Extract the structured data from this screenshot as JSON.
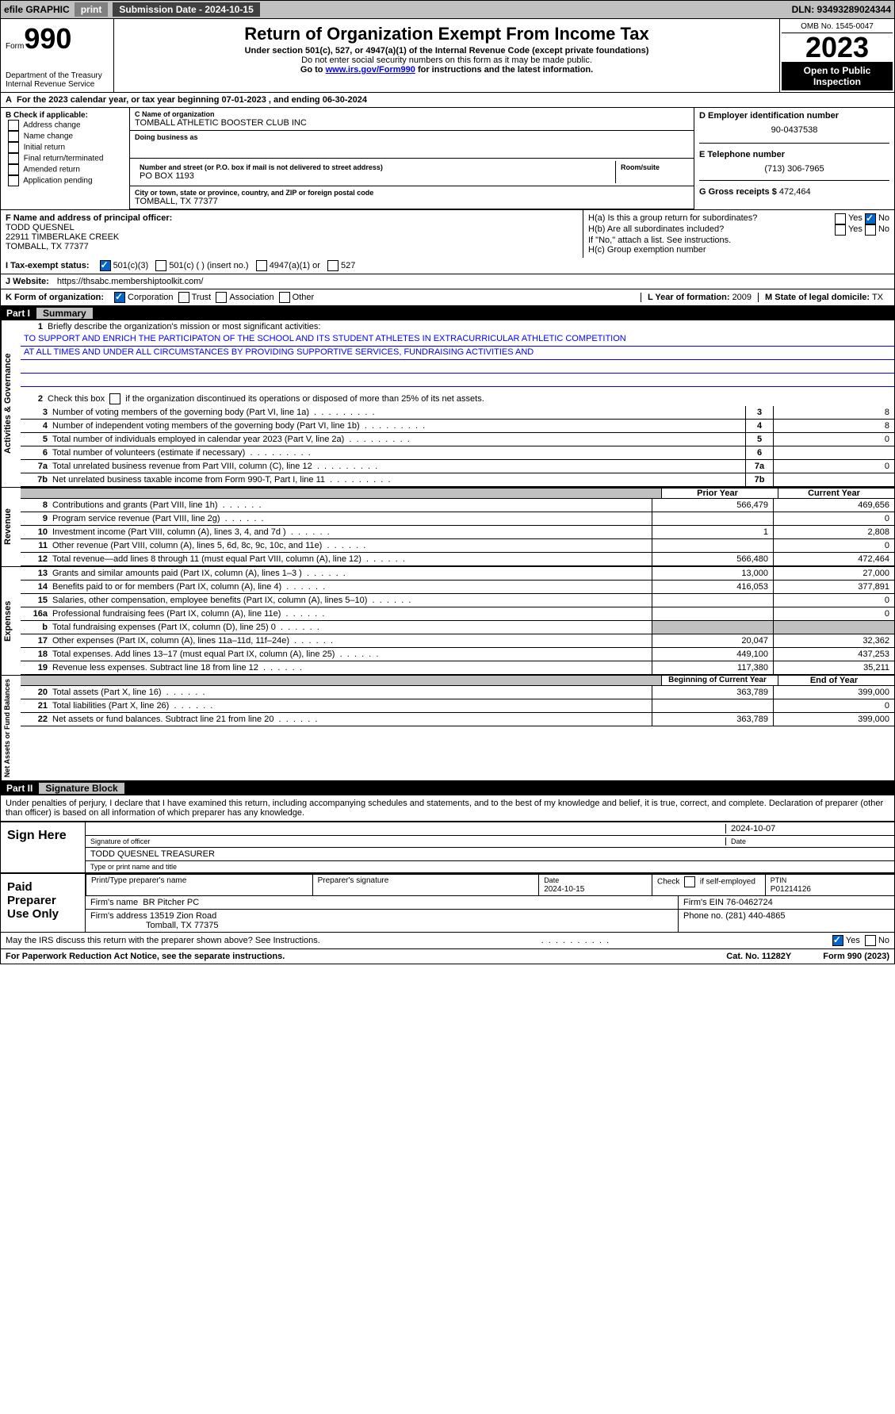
{
  "topbar": {
    "efile": "efile GRAPHIC",
    "print": "print",
    "sub_label": "Submission Date - 2024-10-15",
    "dln": "DLN: 93493289024344"
  },
  "header": {
    "form_word": "Form",
    "form_num": "990",
    "title": "Return of Organization Exempt From Income Tax",
    "sub1": "Under section 501(c), 527, or 4947(a)(1) of the Internal Revenue Code (except private foundations)",
    "sub2": "Do not enter social security numbers on this form as it may be made public.",
    "sub3_pre": "Go to ",
    "sub3_link": "www.irs.gov/Form990",
    "sub3_post": " for instructions and the latest information.",
    "omb": "OMB No. 1545-0047",
    "year": "2023",
    "otp": "Open to Public Inspection",
    "dept1": "Department of the Treasury",
    "dept2": "Internal Revenue Service"
  },
  "line_a": "For the 2023 calendar year, or tax year beginning 07-01-2023    , and ending 06-30-2024",
  "box_b": {
    "title": "B Check if applicable:",
    "opts": [
      "Address change",
      "Name change",
      "Initial return",
      "Final return/terminated",
      "Amended return",
      "Application pending"
    ]
  },
  "box_c": {
    "name_lbl": "C Name of organization",
    "name": "TOMBALL ATHLETIC BOOSTER CLUB INC",
    "dba_lbl": "Doing business as",
    "dba": "",
    "addr_lbl": "Number and street (or P.O. box if mail is not delivered to street address)",
    "room_lbl": "Room/suite",
    "addr": "PO BOX 1193",
    "city_lbl": "City or town, state or province, country, and ZIP or foreign postal code",
    "city": "TOMBALL, TX  77377"
  },
  "box_d": {
    "lbl": "D Employer identification number",
    "val": "90-0437538"
  },
  "box_e": {
    "lbl": "E Telephone number",
    "val": "(713) 306-7965"
  },
  "box_g": {
    "lbl": "G Gross receipts $",
    "val": "472,464"
  },
  "box_f": {
    "lbl": "F Name and address of principal officer:",
    "l1": "TODD QUESNEL",
    "l2": "22911 TIMBERLAKE CREEK",
    "l3": "TOMBALL, TX  77377"
  },
  "box_h": {
    "ha": "H(a)  Is this a group return for subordinates?",
    "hb": "H(b)  Are all subordinates included?",
    "hb2": "If \"No,\" attach a list. See instructions.",
    "hc": "H(c)  Group exemption number ",
    "yes": "Yes",
    "no": "No"
  },
  "row_i": {
    "lbl": "I    Tax-exempt status:",
    "o1": "501(c)(3)",
    "o2": "501(c) (   ) (insert no.)",
    "o3": "4947(a)(1) or",
    "o4": "527"
  },
  "row_j": {
    "lbl": "J   Website:  ",
    "val": "https://thsabc.membershiptoolkit.com/"
  },
  "row_k": {
    "lbl": "K Form of organization:",
    "o1": "Corporation",
    "o2": "Trust",
    "o3": "Association",
    "o4": "Other"
  },
  "row_l": {
    "lbl": "L Year of formation:",
    "val": "2009"
  },
  "row_m": {
    "lbl": "M State of legal domicile:",
    "val": "TX"
  },
  "parts": {
    "p1": "Part I",
    "p1t": "Summary",
    "p2": "Part II",
    "p2t": "Signature Block"
  },
  "summary": {
    "l1_lbl": "Briefly describe the organization's mission or most significant activities:",
    "mission1": "TO SUPPORT AND ENRICH THE PARTICIPATON OF THE SCHOOL AND ITS STUDENT ATHLETES IN EXTRACURRICULAR ATHLETIC COMPETITION",
    "mission2": "AT ALL TIMES AND UNDER ALL CIRCUMSTANCES BY PROVIDING SUPPORTIVE SERVICES, FUNDRAISING ACTIVITIES AND",
    "l2": "Check this box        if the organization discontinued its operations or disposed of more than 25% of its net assets.",
    "l3": {
      "t": "Number of voting members of the governing body (Part VI, line 1a)",
      "n": "3",
      "v": "8"
    },
    "l4": {
      "t": "Number of independent voting members of the governing body (Part VI, line 1b)",
      "n": "4",
      "v": "8"
    },
    "l5": {
      "t": "Total number of individuals employed in calendar year 2023 (Part V, line 2a)",
      "n": "5",
      "v": "0"
    },
    "l6": {
      "t": "Total number of volunteers (estimate if necessary)",
      "n": "6",
      "v": ""
    },
    "l7a": {
      "t": "Total unrelated business revenue from Part VIII, column (C), line 12",
      "n": "7a",
      "v": "0"
    },
    "l7b": {
      "t": "Net unrelated business taxable income from Form 990-T, Part I, line 11",
      "n": "7b",
      "v": ""
    },
    "hdr_prior": "Prior Year",
    "hdr_curr": "Current Year",
    "rev": [
      {
        "n": "8",
        "t": "Contributions and grants (Part VIII, line 1h)",
        "p": "566,479",
        "c": "469,656"
      },
      {
        "n": "9",
        "t": "Program service revenue (Part VIII, line 2g)",
        "p": "",
        "c": "0"
      },
      {
        "n": "10",
        "t": "Investment income (Part VIII, column (A), lines 3, 4, and 7d )",
        "p": "1",
        "c": "2,808"
      },
      {
        "n": "11",
        "t": "Other revenue (Part VIII, column (A), lines 5, 6d, 8c, 9c, 10c, and 11e)",
        "p": "",
        "c": "0"
      },
      {
        "n": "12",
        "t": "Total revenue—add lines 8 through 11 (must equal Part VIII, column (A), line 12)",
        "p": "566,480",
        "c": "472,464"
      }
    ],
    "exp": [
      {
        "n": "13",
        "t": "Grants and similar amounts paid (Part IX, column (A), lines 1–3 )",
        "p": "13,000",
        "c": "27,000"
      },
      {
        "n": "14",
        "t": "Benefits paid to or for members (Part IX, column (A), line 4)",
        "p": "416,053",
        "c": "377,891"
      },
      {
        "n": "15",
        "t": "Salaries, other compensation, employee benefits (Part IX, column (A), lines 5–10)",
        "p": "",
        "c": "0"
      },
      {
        "n": "16a",
        "t": "Professional fundraising fees (Part IX, column (A), line 11e)",
        "p": "",
        "c": "0"
      },
      {
        "n": "b",
        "t": "Total fundraising expenses (Part IX, column (D), line 25) 0",
        "p": "SHADE",
        "c": "SHADE"
      },
      {
        "n": "17",
        "t": "Other expenses (Part IX, column (A), lines 11a–11d, 11f–24e)",
        "p": "20,047",
        "c": "32,362"
      },
      {
        "n": "18",
        "t": "Total expenses. Add lines 13–17 (must equal Part IX, column (A), line 25)",
        "p": "449,100",
        "c": "437,253"
      },
      {
        "n": "19",
        "t": "Revenue less expenses. Subtract line 18 from line 12",
        "p": "117,380",
        "c": "35,211"
      }
    ],
    "hdr_begin": "Beginning of Current Year",
    "hdr_end": "End of Year",
    "net": [
      {
        "n": "20",
        "t": "Total assets (Part X, line 16)",
        "p": "363,789",
        "c": "399,000"
      },
      {
        "n": "21",
        "t": "Total liabilities (Part X, line 26)",
        "p": "",
        "c": "0"
      },
      {
        "n": "22",
        "t": "Net assets or fund balances. Subtract line 21 from line 20",
        "p": "363,789",
        "c": "399,000"
      }
    ],
    "vtabs": {
      "ag": "Activities & Governance",
      "rev": "Revenue",
      "exp": "Expenses",
      "net": "Net Assets or Fund Balances"
    }
  },
  "sigblock": {
    "decl": "Under penalties of perjury, I declare that I have examined this return, including accompanying schedules and statements, and to the best of my knowledge and belief, it is true, correct, and complete. Declaration of preparer (other than officer) is based on all information of which preparer has any knowledge.",
    "sign_here": "Sign Here",
    "sig_officer": "Signature of officer",
    "officer_name": "TODD QUESNEL  TREASURER",
    "type_name": "Type or print name and title",
    "date_lbl": "Date",
    "date_val": "2024-10-07",
    "paid": "Paid Preparer Use Only",
    "prep_name_lbl": "Print/Type preparer's name",
    "prep_sig_lbl": "Preparer's signature",
    "prep_date": "2024-10-15",
    "check_self": "Check        if self-employed",
    "ptin_lbl": "PTIN",
    "ptin": "P01214126",
    "firm_name_lbl": "Firm's name   ",
    "firm_name": "BR Pitcher PC",
    "firm_ein_lbl": "Firm's EIN  ",
    "firm_ein": "76-0462724",
    "firm_addr_lbl": "Firm's address ",
    "firm_addr1": "13519 Zion Road",
    "firm_addr2": "Tomball, TX  77375",
    "phone_lbl": "Phone no.",
    "phone": "(281) 440-4865",
    "discuss": "May the IRS discuss this return with the preparer shown above? See Instructions.",
    "yes": "Yes",
    "no": "No"
  },
  "footer": {
    "pra": "For Paperwork Reduction Act Notice, see the separate instructions.",
    "cat": "Cat. No. 11282Y",
    "form": "Form 990 (2023)"
  },
  "colors": {
    "blue": "#0000ff",
    "gray": "#c0c0c0",
    "darkgray": "#808080"
  }
}
